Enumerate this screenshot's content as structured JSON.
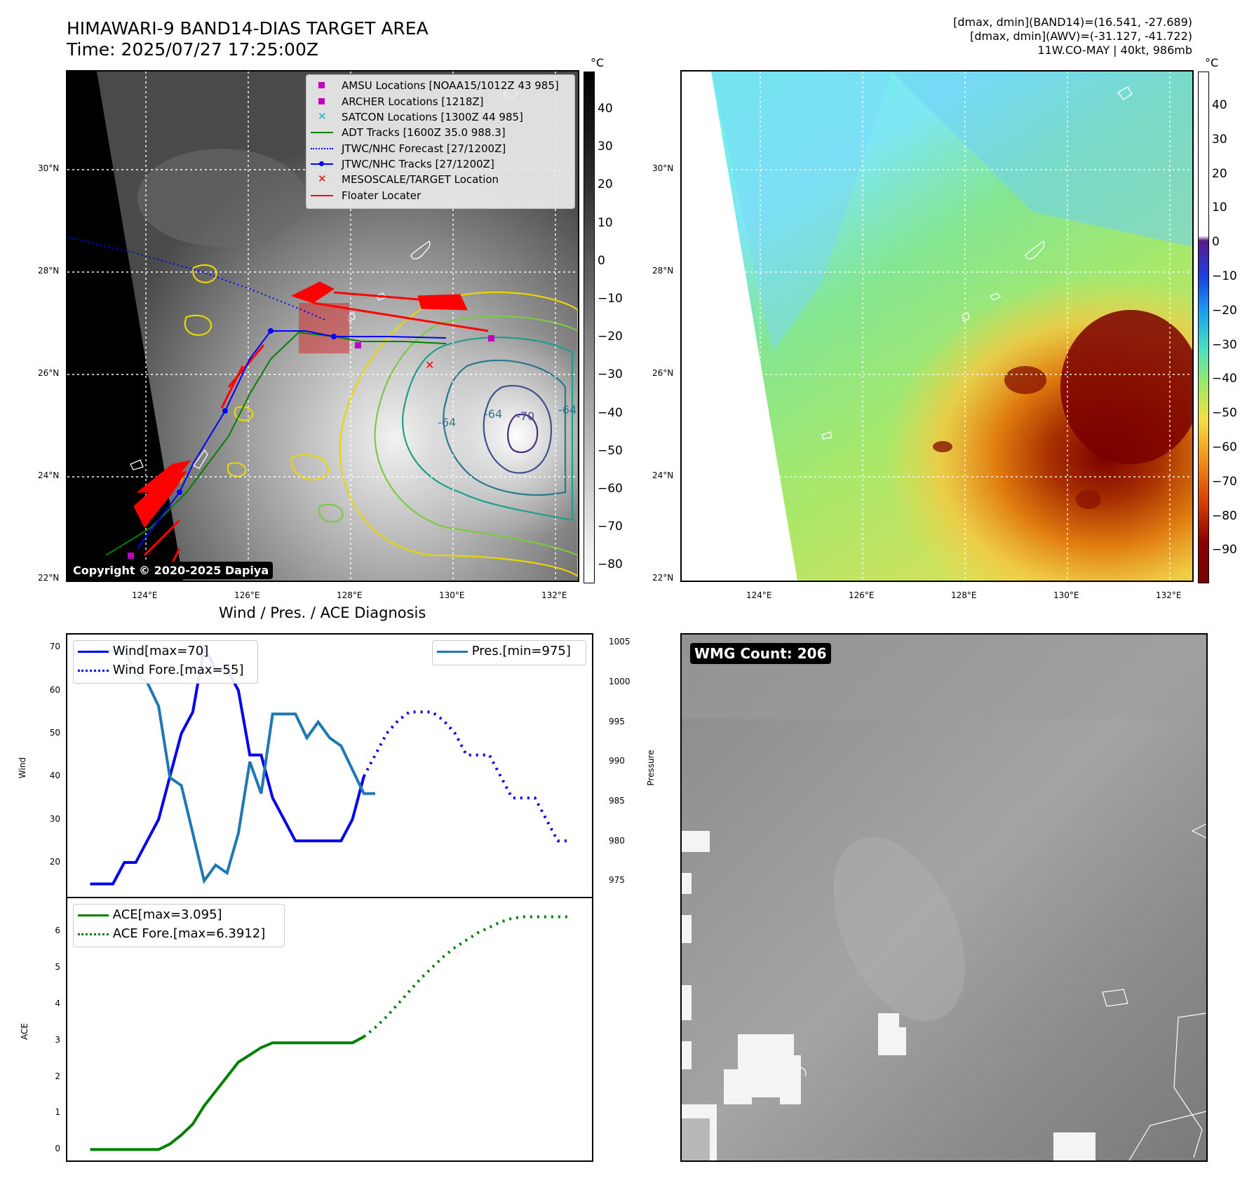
{
  "header": {
    "title_line1": "HIMAWARI-9 BAND14-DIAS TARGET AREA",
    "title_line2": "Time: 2025/07/27 17:25:00Z",
    "right_line1": "[dmax, dmin](BAND14)=(16.541, -27.689)",
    "right_line2": "[dmax, dmin](AWV)=(-31.127, -41.722)",
    "right_line3": "11W.CO-MAY | 40kt, 986mb"
  },
  "map": {
    "lat_labels": [
      "30°N",
      "28°N",
      "26°N",
      "24°N",
      "22°N"
    ],
    "lon_labels": [
      "124°E",
      "126°E",
      "128°E",
      "130°E",
      "132°E"
    ],
    "contour_labels": [
      "-64",
      "-64",
      "-70",
      "-64"
    ],
    "copyright": "Copyright © 2020-2025 Dapiya",
    "legend": [
      {
        "label": "AMSU Locations [NOAA15/1012Z 43 985]",
        "color": "#bf00bf",
        "marker": "square"
      },
      {
        "label": "ARCHER Locations [1218Z]",
        "color": "#bf00bf",
        "marker": "square"
      },
      {
        "label": "SATCON Locations [1300Z 44 985]",
        "color": "#00bfbf",
        "marker": "x"
      },
      {
        "label": "ADT Tracks [1600Z 35.0 988.3]",
        "color": "#008000",
        "marker": "line"
      },
      {
        "label": "JTWC/NHC Forecast [27/1200Z]",
        "color": "#0000ff",
        "marker": "dotted"
      },
      {
        "label": "JTWC/NHC Tracks [27/1200Z]",
        "color": "#0000ff",
        "marker": "line-dot"
      },
      {
        "label": "MESOSCALE/TARGET Location",
        "color": "#ff0000",
        "marker": "x"
      },
      {
        "label": "Floater Locater",
        "color": "#ff0000",
        "marker": "line"
      }
    ]
  },
  "colorbar_left": {
    "unit": "°C",
    "ticks": [
      "40",
      "30",
      "20",
      "10",
      "0",
      "−10",
      "−20",
      "−30",
      "−40",
      "−50",
      "−60",
      "−70",
      "−80"
    ]
  },
  "colorbar_right": {
    "unit": "°C",
    "ticks": [
      "40",
      "30",
      "20",
      "10",
      "0",
      "−10",
      "−20",
      "−30",
      "−40",
      "−50",
      "−60",
      "−70",
      "−80",
      "−90"
    ]
  },
  "wmg": {
    "badge": "WMG Count: 206"
  },
  "chart_data": [
    {
      "type": "line",
      "title": "Wind / Pres. / ACE Diagnosis",
      "ylabel": "Wind",
      "y2label": "Pressure",
      "ylim": [
        12,
        73
      ],
      "y2lim": [
        973,
        1006
      ],
      "yticks": [
        "70",
        "60",
        "50",
        "40",
        "30",
        "20"
      ],
      "y2ticks": [
        "1005",
        "1000",
        "995",
        "990",
        "985",
        "980",
        "975"
      ],
      "series": [
        {
          "name": "Wind[max=70]",
          "axis": "left",
          "style": "solid",
          "color": "#0000ee",
          "x": [
            0,
            1,
            2,
            3,
            4,
            5,
            6,
            7,
            8,
            9,
            10,
            11,
            12,
            13,
            14,
            15,
            16,
            17,
            18,
            19,
            20,
            21,
            22,
            23,
            24
          ],
          "y": [
            15,
            15,
            15,
            20,
            20,
            25,
            30,
            40,
            50,
            55,
            70,
            65,
            65,
            60,
            45,
            45,
            35,
            30,
            25,
            25,
            25,
            25,
            25,
            30,
            40
          ]
        },
        {
          "name": "Wind Fore.[max=55]",
          "axis": "left",
          "style": "dotted",
          "color": "#0000ee",
          "x": [
            24,
            25,
            26,
            27,
            28,
            29,
            30,
            31,
            32,
            33,
            34,
            35,
            36,
            37,
            38,
            39,
            40,
            41,
            42
          ],
          "y": [
            40,
            45,
            50,
            53,
            55,
            55,
            55,
            53,
            50,
            45,
            45,
            45,
            40,
            35,
            35,
            35,
            30,
            25,
            25
          ]
        },
        {
          "name": "Pres.[min=975]",
          "axis": "right",
          "style": "solid",
          "color": "#1f77b4",
          "x": [
            0,
            1,
            2,
            3,
            4,
            5,
            6,
            7,
            8,
            9,
            10,
            11,
            12,
            13,
            14,
            15,
            16,
            17,
            18,
            19,
            20,
            21,
            22,
            23,
            24,
            25
          ],
          "y": [
            1004,
            1004,
            1004,
            1004,
            1001,
            1000,
            997,
            988,
            987,
            981,
            975,
            977,
            976,
            981,
            990,
            986,
            996,
            996,
            996,
            993,
            995,
            993,
            992,
            989,
            986,
            986
          ]
        }
      ],
      "legend": [
        "Wind[max=70]",
        "Wind Fore.[max=55]",
        "Pres.[min=975]"
      ]
    },
    {
      "type": "line",
      "ylabel": "ACE",
      "ylim": [
        -0.3,
        6.9
      ],
      "yticks": [
        "6",
        "5",
        "4",
        "3",
        "2",
        "1",
        "0"
      ],
      "series": [
        {
          "name": "ACE[max=3.095]",
          "style": "solid",
          "color": "#008000",
          "x": [
            0,
            1,
            2,
            3,
            4,
            5,
            6,
            7,
            8,
            9,
            10,
            11,
            12,
            13,
            14,
            15,
            16,
            17,
            18,
            19,
            20,
            21,
            22,
            23,
            24
          ],
          "y": [
            0,
            0,
            0,
            0,
            0,
            0,
            0,
            0.15,
            0.4,
            0.7,
            1.2,
            1.6,
            2.0,
            2.4,
            2.6,
            2.8,
            2.93,
            2.93,
            2.93,
            2.93,
            2.93,
            2.93,
            2.93,
            2.93,
            3.095
          ]
        },
        {
          "name": "ACE Fore.[max=6.3912]",
          "style": "dotted",
          "color": "#008000",
          "x": [
            24,
            25,
            26,
            27,
            28,
            29,
            30,
            31,
            32,
            33,
            34,
            35,
            36,
            37,
            38,
            39,
            40,
            41,
            42
          ],
          "y": [
            3.095,
            3.35,
            3.65,
            4.0,
            4.35,
            4.7,
            5.0,
            5.3,
            5.55,
            5.75,
            5.95,
            6.1,
            6.25,
            6.35,
            6.39,
            6.39,
            6.39,
            6.39,
            6.39
          ]
        }
      ],
      "legend": [
        "ACE[max=3.095]",
        "ACE Fore.[max=6.3912]"
      ]
    }
  ]
}
